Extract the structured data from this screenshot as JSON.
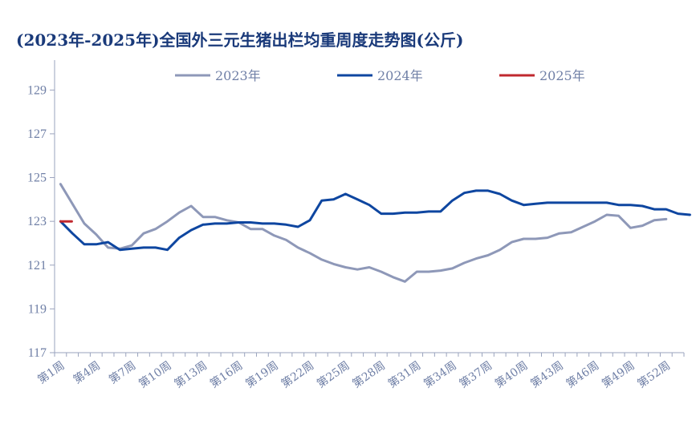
{
  "chart_data": {
    "type": "line",
    "title": "(2023年-2025年)全国外三元生猪出栏均重周度走势图(公斤)",
    "xlabel": "",
    "ylabel": "",
    "ylim": [
      117,
      130
    ],
    "yticks": [
      117,
      119,
      121,
      123,
      125,
      127,
      129
    ],
    "xticks": [
      "第1周",
      "第4周",
      "第7周",
      "第10周",
      "第13周",
      "第16周",
      "第19周",
      "第22周",
      "第25周",
      "第28周",
      "第31周",
      "第34周",
      "第37周",
      "第40周",
      "第43周",
      "第46周",
      "第49周",
      "第52周"
    ],
    "xtick_weeks": [
      1,
      4,
      7,
      10,
      13,
      16,
      19,
      22,
      25,
      28,
      31,
      34,
      37,
      40,
      43,
      46,
      49,
      52
    ],
    "x_weeks": 53,
    "legend_position": "top",
    "series": [
      {
        "name": "2023年",
        "color": "#8e98b8",
        "values": [
          124.7,
          123.8,
          122.9,
          122.4,
          121.8,
          121.75,
          121.9,
          122.45,
          122.65,
          123.0,
          123.4,
          123.7,
          123.2,
          123.2,
          123.05,
          122.95,
          122.65,
          122.65,
          122.35,
          122.15,
          121.8,
          121.55,
          121.25,
          121.05,
          120.9,
          120.8,
          120.9,
          120.7,
          120.45,
          120.25,
          120.7,
          120.7,
          120.75,
          120.85,
          121.1,
          121.3,
          121.45,
          121.7,
          122.05,
          122.2,
          122.2,
          122.25,
          122.45,
          122.5,
          122.75,
          123.0,
          123.3,
          123.25,
          122.7,
          122.8,
          123.05,
          123.1
        ]
      },
      {
        "name": "2024年",
        "color": "#0e46a0",
        "values": [
          123.0,
          122.45,
          121.95,
          121.95,
          122.05,
          121.7,
          121.75,
          121.8,
          121.8,
          121.7,
          122.25,
          122.6,
          122.85,
          122.9,
          122.9,
          122.95,
          122.95,
          122.9,
          122.9,
          122.85,
          122.75,
          123.05,
          123.95,
          124.0,
          124.25,
          124.0,
          123.75,
          123.35,
          123.35,
          123.4,
          123.4,
          123.45,
          123.45,
          123.95,
          124.3,
          124.4,
          124.4,
          124.25,
          123.95,
          123.75,
          123.8,
          123.85,
          123.85,
          123.85,
          123.85,
          123.85,
          123.85,
          123.75,
          123.75,
          123.7,
          123.55,
          123.55,
          123.35,
          123.3
        ]
      },
      {
        "name": "2025年",
        "color": "#c0282e",
        "values": [
          123.0,
          123.0
        ]
      }
    ]
  }
}
